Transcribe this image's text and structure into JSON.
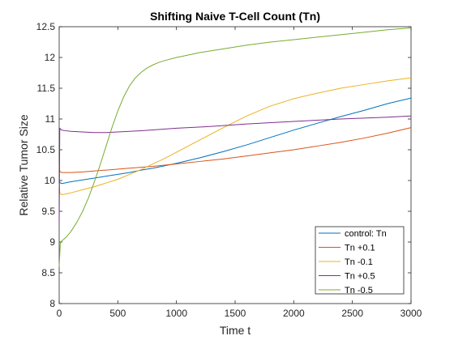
{
  "chart_data": {
    "type": "line",
    "title": "Shifting Naive T-Cell Count (Tn)",
    "xlabel": "Time t",
    "ylabel": "Relative Tumor Size",
    "xlim": [
      0,
      3000
    ],
    "ylim": [
      8,
      12.5
    ],
    "xticks": [
      0,
      500,
      1000,
      1500,
      2000,
      2500,
      3000
    ],
    "yticks": [
      8,
      8.5,
      9,
      9.5,
      10,
      10.5,
      11,
      11.5,
      12,
      12.5
    ],
    "xtick_labels": [
      "0",
      "500",
      "1000",
      "1500",
      "2000",
      "2500",
      "3000"
    ],
    "ytick_labels": [
      "8",
      "8.5",
      "9",
      "9.5",
      "10",
      "10.5",
      "11",
      "11.5",
      "12",
      "12.5"
    ],
    "grid": false,
    "legend_position": "bottom-right",
    "series": [
      {
        "name": "control: Tn",
        "color": "#0072BD",
        "x": [
          0,
          5,
          20,
          50,
          100,
          200,
          300,
          400,
          500,
          600,
          700,
          800,
          900,
          1000,
          1200,
          1400,
          1600,
          1800,
          2000,
          2200,
          2400,
          2600,
          2800,
          3000
        ],
        "y": [
          10.02,
          9.97,
          9.95,
          9.96,
          9.98,
          10.01,
          10.04,
          10.07,
          10.1,
          10.13,
          10.17,
          10.2,
          10.24,
          10.28,
          10.37,
          10.47,
          10.58,
          10.7,
          10.82,
          10.93,
          11.04,
          11.14,
          11.25,
          11.34
        ]
      },
      {
        "name": "Tn +0.1",
        "color": "#D95319",
        "x": [
          0,
          5,
          20,
          50,
          100,
          200,
          400,
          600,
          800,
          1000,
          1200,
          1400,
          1600,
          1800,
          2000,
          2200,
          2400,
          2600,
          2800,
          3000
        ],
        "y": [
          10.25,
          10.15,
          10.13,
          10.13,
          10.13,
          10.14,
          10.17,
          10.2,
          10.23,
          10.27,
          10.31,
          10.35,
          10.4,
          10.45,
          10.5,
          10.56,
          10.62,
          10.69,
          10.77,
          10.86
        ]
      },
      {
        "name": "Tn -0.1",
        "color": "#EDB120",
        "x": [
          0,
          5,
          20,
          50,
          100,
          200,
          300,
          400,
          500,
          600,
          700,
          800,
          900,
          1000,
          1200,
          1400,
          1600,
          1800,
          2000,
          2200,
          2400,
          2600,
          2800,
          3000
        ],
        "y": [
          9.95,
          9.8,
          9.77,
          9.78,
          9.8,
          9.85,
          9.9,
          9.96,
          10.02,
          10.1,
          10.18,
          10.27,
          10.36,
          10.46,
          10.66,
          10.86,
          11.05,
          11.21,
          11.33,
          11.42,
          11.5,
          11.56,
          11.62,
          11.67
        ]
      },
      {
        "name": "Tn +0.5",
        "color": "#7E2F8E",
        "x": [
          0,
          5,
          20,
          50,
          100,
          200,
          300,
          400,
          500,
          700,
          1000,
          1300,
          1600,
          2000,
          2400,
          2800,
          3000
        ],
        "y": [
          9.3,
          10.85,
          10.82,
          10.81,
          10.8,
          10.79,
          10.78,
          10.78,
          10.79,
          10.81,
          10.85,
          10.88,
          10.92,
          10.96,
          11.0,
          11.03,
          11.05
        ]
      },
      {
        "name": "Tn -0.5",
        "color": "#77AC30",
        "x": [
          0,
          10,
          30,
          60,
          100,
          150,
          200,
          250,
          300,
          350,
          400,
          450,
          500,
          550,
          600,
          650,
          700,
          750,
          800,
          850,
          900,
          1000,
          1100,
          1200,
          1400,
          1600,
          1800,
          2000,
          2200,
          2400,
          2600,
          2800,
          3000
        ],
        "y": [
          8.6,
          9.0,
          9.03,
          9.08,
          9.17,
          9.32,
          9.5,
          9.72,
          9.98,
          10.26,
          10.56,
          10.86,
          11.13,
          11.36,
          11.54,
          11.67,
          11.76,
          11.83,
          11.88,
          11.92,
          11.95,
          12.0,
          12.04,
          12.08,
          12.14,
          12.2,
          12.25,
          12.29,
          12.33,
          12.37,
          12.41,
          12.45,
          12.48
        ]
      }
    ]
  }
}
